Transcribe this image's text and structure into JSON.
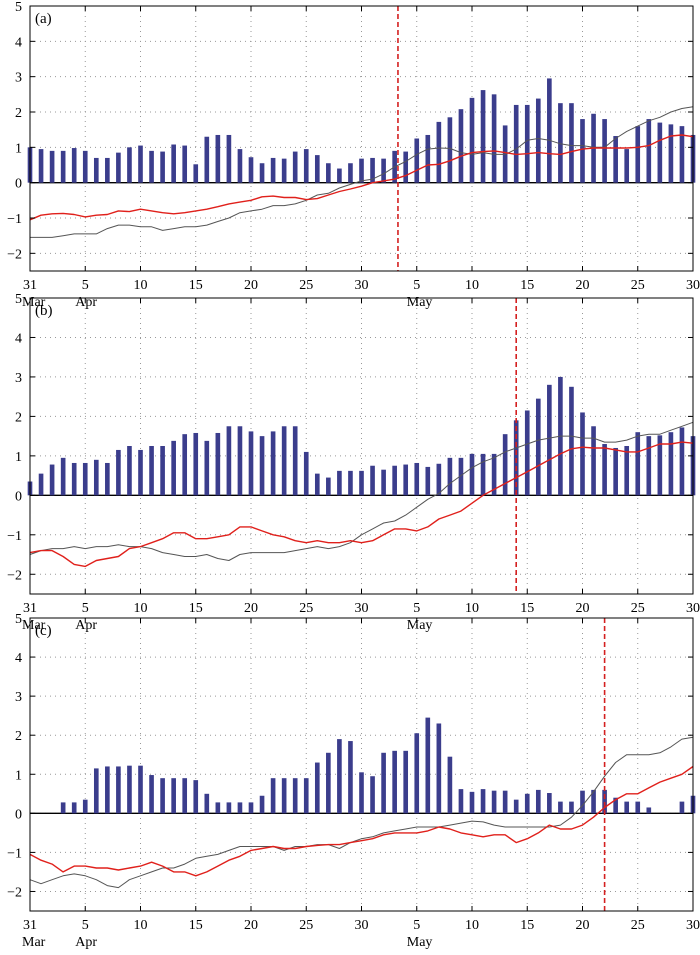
{
  "colors": {
    "bar": "#3b3d8c",
    "red_line": "#e0201b",
    "gray_line": "#555555",
    "vline": "#d42020",
    "grid": "#999999"
  },
  "x_axis": {
    "tick_labels": [
      "31",
      "5",
      "10",
      "15",
      "20",
      "25",
      "30",
      "5",
      "10",
      "15",
      "20",
      "25",
      "30"
    ],
    "tick_days": [
      0,
      5,
      10,
      15,
      20,
      25,
      30,
      35,
      40,
      45,
      50,
      55,
      60
    ],
    "month_labels": [
      "Mar",
      "Apr",
      "May"
    ],
    "month_label_days": [
      0,
      5,
      35
    ]
  },
  "y_axis": {
    "tick_labels": [
      "−2",
      "−1",
      "0",
      "1",
      "2",
      "3",
      "4",
      "5"
    ],
    "tick_values": [
      -2,
      -1,
      0,
      1,
      2,
      3,
      4,
      5
    ]
  },
  "chart_data": [
    {
      "type": "bar",
      "panel_label": "(a)",
      "xlim": [
        0,
        60
      ],
      "ylim": [
        -2.5,
        5
      ],
      "grid": true,
      "vline_x": 33.3,
      "bars": [
        1.0,
        0.95,
        0.9,
        0.9,
        0.98,
        0.9,
        0.7,
        0.7,
        0.85,
        1.0,
        1.05,
        0.9,
        0.88,
        1.08,
        1.05,
        0.52,
        1.3,
        1.35,
        1.35,
        0.95,
        0.72,
        0.55,
        0.7,
        0.68,
        0.88,
        0.95,
        0.78,
        0.55,
        0.4,
        0.55,
        0.68,
        0.7,
        0.68,
        0.9,
        0.88,
        1.25,
        1.35,
        1.72,
        1.85,
        2.08,
        2.4,
        2.62,
        2.5,
        1.62,
        2.2,
        2.2,
        2.38,
        2.95,
        2.25,
        2.25,
        1.8,
        1.95,
        1.8,
        1.32,
        0.95,
        1.6,
        1.8,
        1.7,
        1.65,
        1.6,
        1.35
      ],
      "red": [
        -1.05,
        -0.92,
        -0.88,
        -0.87,
        -0.9,
        -0.97,
        -0.92,
        -0.9,
        -0.8,
        -0.82,
        -0.75,
        -0.8,
        -0.85,
        -0.88,
        -0.85,
        -0.8,
        -0.75,
        -0.68,
        -0.6,
        -0.55,
        -0.5,
        -0.4,
        -0.38,
        -0.42,
        -0.42,
        -0.48,
        -0.45,
        -0.35,
        -0.25,
        -0.18,
        -0.1,
        0.0,
        0.05,
        0.1,
        0.2,
        0.35,
        0.5,
        0.52,
        0.62,
        0.75,
        0.85,
        0.88,
        0.9,
        0.85,
        0.8,
        0.82,
        0.85,
        0.82,
        0.8,
        0.88,
        0.95,
        0.98,
        0.98,
        0.98,
        0.98,
        1.0,
        1.05,
        1.2,
        1.32,
        1.35,
        1.3
      ],
      "gray": [
        -1.55,
        -1.55,
        -1.55,
        -1.5,
        -1.45,
        -1.45,
        -1.45,
        -1.3,
        -1.2,
        -1.2,
        -1.25,
        -1.25,
        -1.35,
        -1.3,
        -1.25,
        -1.25,
        -1.2,
        -1.1,
        -1.0,
        -0.85,
        -0.8,
        -0.75,
        -0.65,
        -0.65,
        -0.6,
        -0.5,
        -0.35,
        -0.3,
        -0.15,
        -0.05,
        0.05,
        0.1,
        0.25,
        0.45,
        0.6,
        0.8,
        0.95,
        0.98,
        0.97,
        0.85,
        0.8,
        0.85,
        0.8,
        0.8,
        0.95,
        1.2,
        1.25,
        1.2,
        1.1,
        1.05,
        1.05,
        1.0,
        1.0,
        1.25,
        1.45,
        1.6,
        1.75,
        1.85,
        2.0,
        2.1,
        2.15
      ]
    },
    {
      "type": "bar",
      "panel_label": "(b)",
      "xlim": [
        0,
        60
      ],
      "ylim": [
        -2.5,
        5
      ],
      "grid": true,
      "vline_x": 44,
      "bars": [
        0.35,
        0.55,
        0.78,
        0.95,
        0.82,
        0.82,
        0.9,
        0.82,
        1.15,
        1.25,
        1.15,
        1.25,
        1.25,
        1.38,
        1.55,
        1.58,
        1.38,
        1.58,
        1.75,
        1.75,
        1.62,
        1.5,
        1.62,
        1.75,
        1.75,
        1.1,
        0.55,
        0.45,
        0.62,
        0.62,
        0.62,
        0.75,
        0.65,
        0.75,
        0.78,
        0.82,
        0.72,
        0.8,
        0.95,
        0.95,
        1.05,
        1.05,
        1.05,
        1.55,
        1.9,
        2.15,
        2.45,
        2.8,
        3.0,
        2.75,
        2.1,
        1.75,
        1.3,
        1.2,
        1.25,
        1.6,
        1.5,
        1.52,
        1.6,
        1.72,
        1.5
      ],
      "red": [
        -1.45,
        -1.4,
        -1.4,
        -1.55,
        -1.75,
        -1.8,
        -1.65,
        -1.6,
        -1.55,
        -1.35,
        -1.3,
        -1.2,
        -1.1,
        -0.95,
        -0.95,
        -1.1,
        -1.1,
        -1.05,
        -1.0,
        -0.8,
        -0.8,
        -0.9,
        -1.0,
        -1.05,
        -1.15,
        -1.2,
        -1.15,
        -1.2,
        -1.2,
        -1.15,
        -1.2,
        -1.15,
        -1.0,
        -0.85,
        -0.85,
        -0.9,
        -0.8,
        -0.6,
        -0.5,
        -0.4,
        -0.2,
        0.0,
        0.15,
        0.3,
        0.45,
        0.6,
        0.75,
        0.9,
        1.05,
        1.18,
        1.22,
        1.2,
        1.2,
        1.15,
        1.1,
        1.1,
        1.2,
        1.3,
        1.3,
        1.35,
        1.32
      ],
      "gray": [
        -1.5,
        -1.4,
        -1.35,
        -1.35,
        -1.3,
        -1.35,
        -1.3,
        -1.3,
        -1.25,
        -1.3,
        -1.3,
        -1.35,
        -1.45,
        -1.5,
        -1.55,
        -1.55,
        -1.5,
        -1.6,
        -1.65,
        -1.5,
        -1.45,
        -1.45,
        -1.45,
        -1.45,
        -1.4,
        -1.35,
        -1.3,
        -1.35,
        -1.3,
        -1.2,
        -1.0,
        -0.85,
        -0.7,
        -0.65,
        -0.5,
        -0.3,
        -0.1,
        0.05,
        0.3,
        0.5,
        0.7,
        0.85,
        0.95,
        1.1,
        1.2,
        1.3,
        1.4,
        1.45,
        1.5,
        1.5,
        1.45,
        1.45,
        1.35,
        1.35,
        1.4,
        1.5,
        1.55,
        1.55,
        1.65,
        1.75,
        1.85
      ]
    },
    {
      "type": "bar",
      "panel_label": "(c)",
      "xlim": [
        0,
        60
      ],
      "ylim": [
        -2.5,
        5
      ],
      "grid": true,
      "vline_x": 52,
      "bars": [
        0,
        0,
        0,
        0.28,
        0.28,
        0.35,
        1.15,
        1.2,
        1.2,
        1.22,
        1.22,
        0.98,
        0.9,
        0.9,
        0.9,
        0.85,
        0.5,
        0.28,
        0.28,
        0.28,
        0.28,
        0.45,
        0.9,
        0.9,
        0.9,
        0.9,
        1.3,
        1.55,
        1.9,
        1.85,
        1.05,
        0.95,
        1.55,
        1.6,
        1.6,
        2.05,
        2.45,
        2.3,
        1.45,
        0.62,
        0.55,
        0.62,
        0.58,
        0.58,
        0.35,
        0.5,
        0.6,
        0.52,
        0.3,
        0.3,
        0.58,
        0.6,
        0.6,
        0.4,
        0.3,
        0.3,
        0.15,
        0,
        0,
        0.3,
        0.45
      ],
      "red": [
        -1.05,
        -1.2,
        -1.3,
        -1.5,
        -1.35,
        -1.35,
        -1.4,
        -1.4,
        -1.45,
        -1.4,
        -1.35,
        -1.25,
        -1.35,
        -1.5,
        -1.5,
        -1.6,
        -1.5,
        -1.35,
        -1.2,
        -1.1,
        -0.95,
        -0.9,
        -0.85,
        -0.9,
        -0.9,
        -0.85,
        -0.82,
        -0.8,
        -0.8,
        -0.75,
        -0.7,
        -0.65,
        -0.55,
        -0.5,
        -0.5,
        -0.5,
        -0.45,
        -0.35,
        -0.4,
        -0.5,
        -0.55,
        -0.6,
        -0.55,
        -0.55,
        -0.75,
        -0.65,
        -0.5,
        -0.3,
        -0.4,
        -0.4,
        -0.3,
        -0.1,
        0.15,
        0.35,
        0.5,
        0.5,
        0.65,
        0.8,
        0.9,
        1.0,
        1.2
      ],
      "gray": [
        -1.7,
        -1.8,
        -1.7,
        -1.6,
        -1.55,
        -1.6,
        -1.7,
        -1.85,
        -1.9,
        -1.7,
        -1.6,
        -1.5,
        -1.4,
        -1.4,
        -1.3,
        -1.15,
        -1.1,
        -1.05,
        -0.95,
        -0.85,
        -0.85,
        -0.85,
        -0.85,
        -0.95,
        -0.85,
        -0.85,
        -0.8,
        -0.8,
        -0.9,
        -0.75,
        -0.65,
        -0.6,
        -0.5,
        -0.45,
        -0.4,
        -0.35,
        -0.35,
        -0.35,
        -0.3,
        -0.25,
        -0.2,
        -0.22,
        -0.3,
        -0.35,
        -0.35,
        -0.35,
        -0.35,
        -0.35,
        -0.3,
        -0.1,
        0.2,
        0.55,
        0.95,
        1.3,
        1.5,
        1.5,
        1.5,
        1.55,
        1.7,
        1.9,
        1.95
      ]
    }
  ]
}
